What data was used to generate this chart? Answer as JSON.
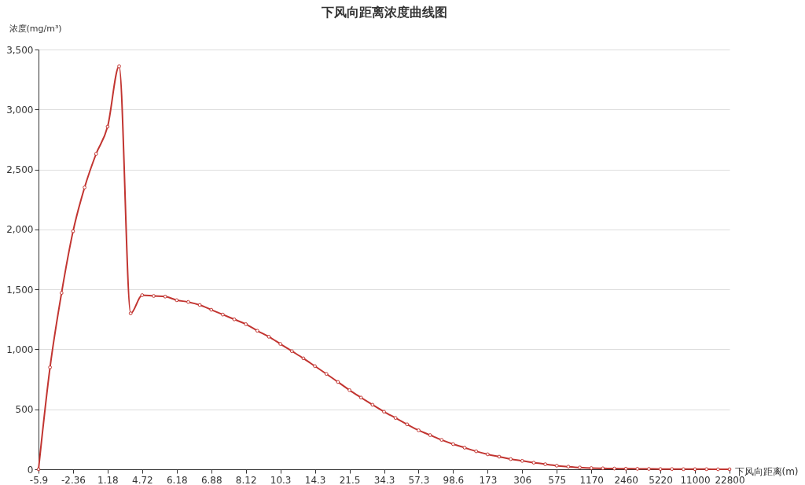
{
  "chart_data": {
    "type": "line",
    "title": "下风向距离浓度曲线图",
    "xlabel": "下风向距离(m)",
    "ylabel": "浓度(mg/m³)",
    "categories": [
      "-5.9",
      null,
      null,
      "-2.36",
      null,
      null,
      "1.18",
      null,
      null,
      "4.72",
      null,
      null,
      "6.18",
      null,
      null,
      "6.88",
      null,
      null,
      "8.12",
      null,
      null,
      "10.3",
      null,
      null,
      "14.3",
      null,
      null,
      "21.5",
      null,
      null,
      "34.3",
      null,
      null,
      "57.3",
      null,
      null,
      "98.6",
      null,
      null,
      "173",
      null,
      null,
      "306",
      null,
      null,
      "575",
      null,
      null,
      "1170",
      null,
      null,
      "2460",
      null,
      null,
      "5220",
      null,
      null,
      "11000",
      null,
      null,
      "22800"
    ],
    "series": [
      {
        "color": "#c23531",
        "values": [
          0,
          850,
          1470,
          1985,
          2350,
          2630,
          2857,
          3360,
          1300,
          1452,
          1445,
          1440,
          1410,
          1395,
          1370,
          1330,
          1290,
          1250,
          1210,
          1155,
          1105,
          1045,
          985,
          925,
          860,
          795,
          728,
          660,
          598,
          538,
          480,
          428,
          375,
          325,
          285,
          245,
          210,
          180,
          150,
          125,
          105,
          85,
          70,
          55,
          42,
          30,
          22,
          15,
          10,
          8,
          6,
          5,
          4,
          3,
          2,
          2,
          1,
          1,
          1,
          0,
          0
        ]
      }
    ],
    "ylim": [
      0,
      3500
    ],
    "yticks": [
      0,
      500,
      {
        "value": 1000,
        "label": "1,000"
      },
      {
        "value": 1500,
        "label": "1,500"
      },
      {
        "value": 2000,
        "label": "2,000"
      },
      {
        "value": 2500,
        "label": "2,500"
      },
      {
        "value": 3000,
        "label": "3,000"
      },
      {
        "value": 3500,
        "label": "3,500"
      }
    ],
    "grid": "y",
    "marker": "circle"
  }
}
